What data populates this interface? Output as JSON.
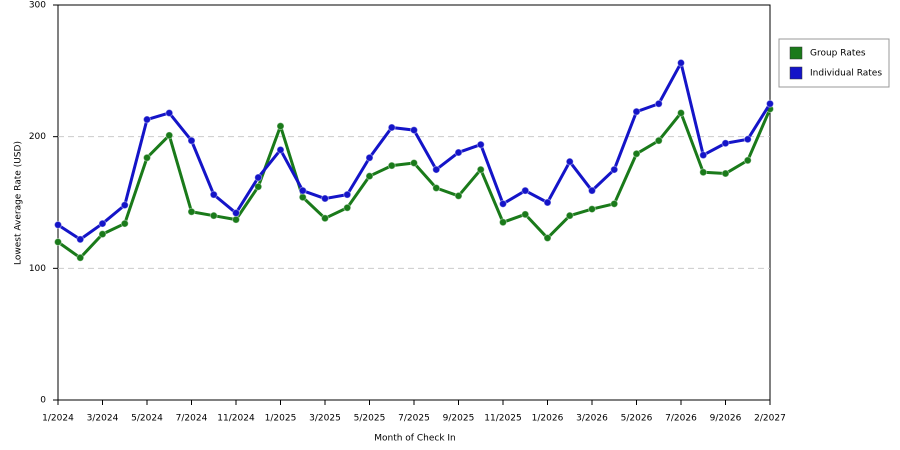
{
  "chart_data": {
    "type": "line",
    "xlabel": "Month of Check In",
    "ylabel": "Lowest Average Rate (USD)",
    "categories": [
      "1/2024",
      null,
      "3/2024",
      null,
      "5/2024",
      null,
      "7/2024",
      null,
      "11/2024",
      null,
      "1/2025",
      null,
      "3/2025",
      null,
      "5/2025",
      null,
      "7/2025",
      null,
      "9/2025",
      null,
      "11/2025",
      null,
      "1/2026",
      null,
      "3/2026",
      null,
      "5/2026",
      null,
      "7/2026",
      null,
      "9/2026",
      null,
      "2/2027"
    ],
    "series": [
      {
        "name": "Group Rates",
        "color": "#1a7a1a",
        "values": [
          120,
          108,
          126,
          134,
          184,
          201,
          143,
          140,
          137,
          162,
          208,
          154,
          138,
          146,
          170,
          178,
          180,
          161,
          155,
          175,
          135,
          141,
          123,
          140,
          145,
          149,
          187,
          197,
          218,
          173,
          172,
          182,
          221
        ]
      },
      {
        "name": "Individual Rates",
        "color": "#1414c8",
        "values": [
          133,
          122,
          134,
          148,
          213,
          218,
          197,
          156,
          142,
          169,
          190,
          159,
          153,
          156,
          184,
          207,
          205,
          175,
          188,
          194,
          149,
          159,
          150,
          181,
          159,
          175,
          219,
          225,
          256,
          186,
          195,
          198,
          225
        ]
      }
    ],
    "ylim": [
      0,
      300
    ],
    "yticks": [
      0,
      100,
      200,
      300
    ],
    "grid": true,
    "legend": "right"
  }
}
